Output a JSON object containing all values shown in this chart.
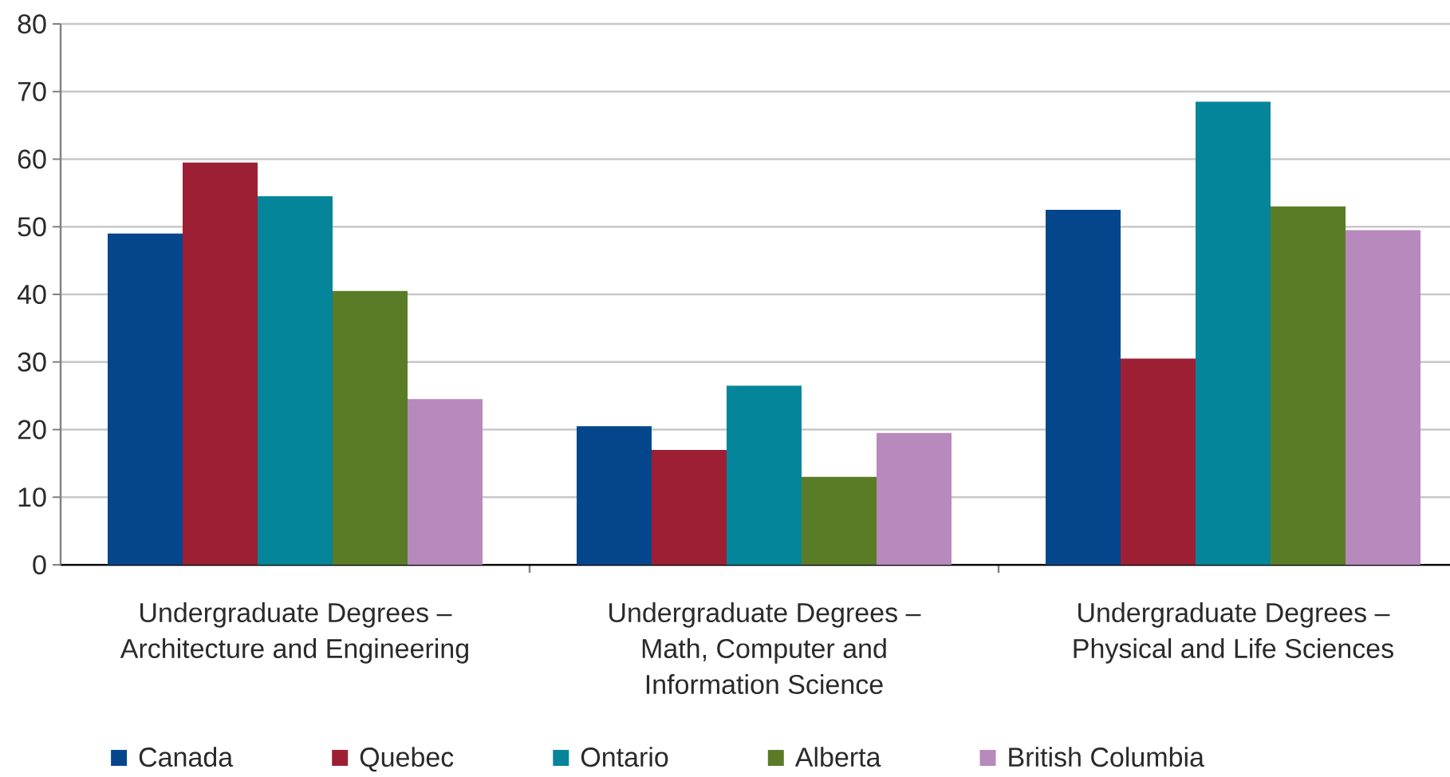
{
  "chart_data": {
    "type": "bar",
    "categories": [
      "Undergraduate Degrees – Architecture and Engineering",
      "Undergraduate Degrees – Math, Computer and Information Science",
      "Undergraduate Degrees – Physical and Life Sciences"
    ],
    "series": [
      {
        "name": "Canada",
        "color": "#03468c",
        "values": [
          49,
          20.5,
          52.5
        ]
      },
      {
        "name": "Quebec",
        "color": "#9c1f33",
        "values": [
          59.5,
          17,
          30.5
        ]
      },
      {
        "name": "Ontario",
        "color": "#04859a",
        "values": [
          54.5,
          26.5,
          68.5
        ]
      },
      {
        "name": "Alberta",
        "color": "#5a7c27",
        "values": [
          40.5,
          13,
          53
        ]
      },
      {
        "name": "British Columbia",
        "color": "#b889bc",
        "values": [
          24.5,
          19.5,
          49.5
        ]
      }
    ],
    "ylim": [
      0,
      80
    ],
    "yticks": [
      0,
      10,
      20,
      30,
      40,
      50,
      60,
      70,
      80
    ],
    "grid": "y",
    "legend": "bottom"
  }
}
